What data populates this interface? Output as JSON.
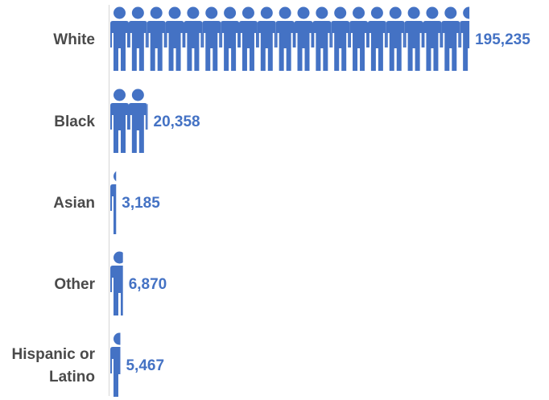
{
  "chart_data": {
    "type": "bar",
    "orientation": "horizontal",
    "mark": "person-pictogram",
    "color": "#4472c4",
    "categories": [
      "White",
      "Black",
      "Asian",
      "Other",
      "Hispanic or Latino"
    ],
    "category_lines": [
      [
        "White"
      ],
      [
        "Black"
      ],
      [
        "Asian"
      ],
      [
        "Other"
      ],
      [
        "Hispanic or",
        "Latino"
      ]
    ],
    "values": [
      195235,
      20358,
      3185,
      6870,
      5467
    ],
    "value_labels": [
      "195,235",
      "20,358",
      "3,185",
      "6,870",
      "5,467"
    ],
    "units_per_icon": 10000,
    "title": "",
    "xlabel": "",
    "ylabel": ""
  }
}
